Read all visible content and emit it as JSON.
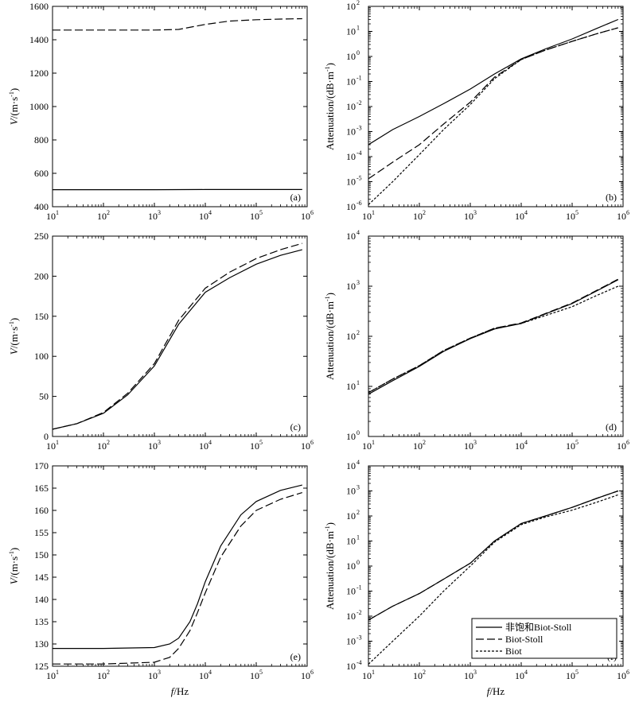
{
  "figure": {
    "legend": {
      "placement": "bottom-right of panel (f)",
      "entries": [
        {
          "label": "非饱和Biot-Stoll",
          "dash": "solid"
        },
        {
          "label": "Biot-Stoll",
          "dash": "dashed"
        },
        {
          "label": "Biot",
          "dash": "dotted"
        }
      ]
    },
    "shared_xlabel": {
      "italic": "f",
      "rest": "/Hz"
    }
  },
  "chart_data": [
    {
      "panel": "(a)",
      "type": "line",
      "xscale": "log",
      "xlim": [
        10,
        1000000
      ],
      "xticks": [
        {
          "b": "10",
          "e": "1"
        },
        {
          "b": "10",
          "e": "2"
        },
        {
          "b": "10",
          "e": "3"
        },
        {
          "b": "10",
          "e": "4"
        },
        {
          "b": "10",
          "e": "5"
        },
        {
          "b": "10",
          "e": "6"
        }
      ],
      "yscale": "linear",
      "ylim": [
        400,
        1600
      ],
      "yticks": [
        {
          "v": 400,
          "t": "400"
        },
        {
          "v": 600,
          "t": "600"
        },
        {
          "v": 800,
          "t": "800"
        },
        {
          "v": 1000,
          "t": "1000"
        },
        {
          "v": 1200,
          "t": "1200"
        },
        {
          "v": 1400,
          "t": "1400"
        },
        {
          "v": 1600,
          "t": "1600"
        }
      ],
      "ylabel": {
        "italic": "V",
        "rest": "/(m·s",
        "sup": "-1",
        "end": ")"
      },
      "series": [
        {
          "dash": "solid",
          "x": [
            10,
            100,
            1000,
            10000,
            100000,
            800000
          ],
          "y": [
            502,
            502,
            502,
            503,
            503,
            503
          ]
        },
        {
          "dash": "dashed",
          "x": [
            10,
            100,
            1000,
            3000,
            10000,
            30000,
            100000,
            300000,
            800000
          ],
          "y": [
            1458,
            1458,
            1458,
            1462,
            1492,
            1512,
            1520,
            1524,
            1526
          ]
        }
      ]
    },
    {
      "panel": "(b)",
      "type": "line",
      "xscale": "log",
      "xlim": [
        10,
        1000000
      ],
      "xticks": [
        {
          "b": "10",
          "e": "1"
        },
        {
          "b": "10",
          "e": "2"
        },
        {
          "b": "10",
          "e": "3"
        },
        {
          "b": "10",
          "e": "4"
        },
        {
          "b": "10",
          "e": "5"
        },
        {
          "b": "10",
          "e": "6"
        }
      ],
      "yscale": "log",
      "ylim": [
        1e-06,
        100
      ],
      "yticks": [
        {
          "v": 1e-06,
          "b": "10",
          "e": "-6"
        },
        {
          "v": 1e-05,
          "b": "10",
          "e": "-5"
        },
        {
          "v": 0.0001,
          "b": "10",
          "e": "-4"
        },
        {
          "v": 0.001,
          "b": "10",
          "e": "-3"
        },
        {
          "v": 0.01,
          "b": "10",
          "e": "-2"
        },
        {
          "v": 0.1,
          "b": "10",
          "e": "-1"
        },
        {
          "v": 1,
          "b": "10",
          "e": "0"
        },
        {
          "v": 10,
          "b": "10",
          "e": "1"
        },
        {
          "v": 100,
          "b": "10",
          "e": "2"
        }
      ],
      "ylabel": {
        "italic": "",
        "rest": "Attenuation/(dB·m",
        "sup": "-1",
        "end": ")"
      },
      "series": [
        {
          "dash": "solid",
          "x": [
            10,
            30,
            100,
            300,
            1000,
            3000,
            10000,
            30000,
            100000,
            300000,
            800000
          ],
          "y": [
            0.0003,
            0.0012,
            0.004,
            0.013,
            0.05,
            0.2,
            0.8,
            2,
            5,
            13,
            30
          ]
        },
        {
          "dash": "dashed",
          "x": [
            10,
            30,
            100,
            300,
            1000,
            3000,
            10000,
            30000,
            100000,
            300000,
            800000
          ],
          "y": [
            1.3e-05,
            6e-05,
            0.0003,
            0.002,
            0.015,
            0.15,
            0.75,
            1.8,
            4,
            8,
            14
          ]
        },
        {
          "dash": "dotted",
          "x": [
            10,
            30,
            100,
            300,
            1000,
            3000,
            10000,
            30000,
            100000,
            300000,
            800000
          ],
          "y": [
            1.2e-06,
            1e-05,
            0.00012,
            0.0012,
            0.012,
            0.13,
            0.75,
            1.8,
            4,
            8,
            14
          ]
        }
      ]
    },
    {
      "panel": "(c)",
      "type": "line",
      "xscale": "log",
      "xlim": [
        10,
        1000000
      ],
      "xticks": [
        {
          "b": "10",
          "e": "1"
        },
        {
          "b": "10",
          "e": "2"
        },
        {
          "b": "10",
          "e": "3"
        },
        {
          "b": "10",
          "e": "4"
        },
        {
          "b": "10",
          "e": "5"
        },
        {
          "b": "10",
          "e": "6"
        }
      ],
      "yscale": "linear",
      "ylim": [
        0,
        250
      ],
      "yticks": [
        {
          "v": 0,
          "t": "0"
        },
        {
          "v": 50,
          "t": "50"
        },
        {
          "v": 100,
          "t": "100"
        },
        {
          "v": 150,
          "t": "150"
        },
        {
          "v": 200,
          "t": "200"
        },
        {
          "v": 250,
          "t": "250"
        }
      ],
      "ylabel": {
        "italic": "V",
        "rest": "/(m·s",
        "sup": "-1",
        "end": ")"
      },
      "series": [
        {
          "dash": "solid",
          "x": [
            10,
            30,
            100,
            300,
            1000,
            3000,
            10000,
            30000,
            100000,
            300000,
            800000
          ],
          "y": [
            9,
            16,
            29,
            52,
            88,
            140,
            180,
            198,
            215,
            226,
            233
          ]
        },
        {
          "dash": "dashed",
          "x": [
            10,
            30,
            100,
            300,
            1000,
            3000,
            10000,
            30000,
            100000,
            300000,
            800000
          ],
          "y": [
            9,
            16,
            30,
            54,
            91,
            145,
            185,
            205,
            222,
            233,
            241
          ]
        }
      ]
    },
    {
      "panel": "(d)",
      "type": "line",
      "xscale": "log",
      "xlim": [
        10,
        1000000
      ],
      "xticks": [
        {
          "b": "10",
          "e": "1"
        },
        {
          "b": "10",
          "e": "2"
        },
        {
          "b": "10",
          "e": "3"
        },
        {
          "b": "10",
          "e": "4"
        },
        {
          "b": "10",
          "e": "5"
        },
        {
          "b": "10",
          "e": "6"
        }
      ],
      "yscale": "log",
      "ylim": [
        1,
        10000
      ],
      "yticks": [
        {
          "v": 1,
          "b": "10",
          "e": "0"
        },
        {
          "v": 10,
          "b": "10",
          "e": "1"
        },
        {
          "v": 100,
          "b": "10",
          "e": "2"
        },
        {
          "v": 1000,
          "b": "10",
          "e": "3"
        },
        {
          "v": 10000,
          "b": "10",
          "e": "4"
        }
      ],
      "ylabel": {
        "italic": "",
        "rest": "Attenuation/(dB·m",
        "sup": "-1",
        "end": ")"
      },
      "series": [
        {
          "dash": "solid",
          "x": [
            10,
            30,
            100,
            300,
            1000,
            3000,
            10000,
            30000,
            100000,
            300000,
            800000
          ],
          "y": [
            7,
            13,
            25,
            50,
            90,
            140,
            180,
            280,
            450,
            800,
            1350
          ]
        },
        {
          "dash": "dashed",
          "x": [
            10,
            30,
            100,
            300,
            1000,
            3000,
            10000,
            30000,
            100000,
            300000,
            800000
          ],
          "y": [
            7.5,
            14,
            26,
            52,
            92,
            145,
            185,
            285,
            460,
            820,
            1380
          ]
        },
        {
          "dash": "dotted",
          "x": [
            10,
            30,
            100,
            300,
            1000,
            3000,
            10000,
            30000,
            100000,
            300000,
            800000
          ],
          "y": [
            7.5,
            14,
            26,
            52,
            92,
            145,
            180,
            260,
            390,
            650,
            1000
          ]
        }
      ]
    },
    {
      "panel": "(e)",
      "type": "line",
      "xscale": "log",
      "xlim": [
        10,
        1000000
      ],
      "xticks": [
        {
          "b": "10",
          "e": "1"
        },
        {
          "b": "10",
          "e": "2"
        },
        {
          "b": "10",
          "e": "3"
        },
        {
          "b": "10",
          "e": "4"
        },
        {
          "b": "10",
          "e": "5"
        },
        {
          "b": "10",
          "e": "6"
        }
      ],
      "yscale": "linear",
      "ylim": [
        125,
        170
      ],
      "yticks": [
        {
          "v": 125,
          "t": "125"
        },
        {
          "v": 130,
          "t": "130"
        },
        {
          "v": 135,
          "t": "135"
        },
        {
          "v": 140,
          "t": "140"
        },
        {
          "v": 145,
          "t": "145"
        },
        {
          "v": 150,
          "t": "150"
        },
        {
          "v": 155,
          "t": "155"
        },
        {
          "v": 160,
          "t": "160"
        },
        {
          "v": 165,
          "t": "165"
        },
        {
          "v": 170,
          "t": "170"
        }
      ],
      "ylabel": {
        "italic": "V",
        "rest": "/(m·s",
        "sup": "-1",
        "end": ")"
      },
      "series": [
        {
          "dash": "solid",
          "x": [
            10,
            100,
            1000,
            2000,
            3000,
            5000,
            7000,
            10000,
            20000,
            50000,
            100000,
            300000,
            800000
          ],
          "y": [
            129,
            129,
            129.2,
            130,
            131.3,
            135,
            139,
            144,
            152,
            159,
            162,
            164.5,
            165.7
          ]
        },
        {
          "dash": "dashed",
          "x": [
            10,
            100,
            1000,
            2000,
            3000,
            5000,
            7000,
            10000,
            20000,
            50000,
            100000,
            300000,
            800000
          ],
          "y": [
            125.5,
            125.5,
            125.9,
            127,
            129,
            133,
            137,
            141.5,
            149.5,
            156.5,
            160,
            162.5,
            164
          ]
        }
      ]
    },
    {
      "panel": "(f)",
      "type": "line",
      "xscale": "log",
      "xlim": [
        10,
        1000000
      ],
      "xticks": [
        {
          "b": "10",
          "e": "1"
        },
        {
          "b": "10",
          "e": "2"
        },
        {
          "b": "10",
          "e": "3"
        },
        {
          "b": "10",
          "e": "4"
        },
        {
          "b": "10",
          "e": "5"
        },
        {
          "b": "10",
          "e": "6"
        }
      ],
      "yscale": "log",
      "ylim": [
        0.0001,
        10000
      ],
      "yticks": [
        {
          "v": 0.0001,
          "b": "10",
          "e": "-4"
        },
        {
          "v": 0.001,
          "b": "10",
          "e": "-3"
        },
        {
          "v": 0.01,
          "b": "10",
          "e": "-2"
        },
        {
          "v": 0.1,
          "b": "10",
          "e": "-1"
        },
        {
          "v": 1,
          "b": "10",
          "e": "0"
        },
        {
          "v": 10,
          "b": "10",
          "e": "1"
        },
        {
          "v": 100,
          "b": "10",
          "e": "2"
        },
        {
          "v": 1000,
          "b": "10",
          "e": "3"
        },
        {
          "v": 10000,
          "b": "10",
          "e": "4"
        }
      ],
      "ylabel": {
        "italic": "",
        "rest": "Attenuation/(dB·m",
        "sup": "-1",
        "end": ")"
      },
      "series": [
        {
          "dash": "solid",
          "x": [
            10,
            30,
            100,
            300,
            1000,
            3000,
            10000,
            30000,
            100000,
            300000,
            800000
          ],
          "y": [
            0.007,
            0.025,
            0.08,
            0.3,
            1.3,
            10,
            50,
            100,
            220,
            500,
            1000
          ]
        },
        {
          "dash": "dashed",
          "x": [
            10,
            30,
            100,
            300,
            1000,
            3000,
            10000,
            30000,
            100000,
            300000,
            800000
          ],
          "y": [
            0.007,
            0.025,
            0.08,
            0.3,
            1.3,
            10,
            50,
            100,
            220,
            500,
            1000
          ]
        },
        {
          "dash": "dotted",
          "x": [
            10,
            30,
            100,
            300,
            1000,
            3000,
            10000,
            30000,
            100000,
            300000,
            800000
          ],
          "y": [
            0.00012,
            0.001,
            0.01,
            0.1,
            1,
            9,
            45,
            90,
            170,
            350,
            700
          ]
        }
      ]
    }
  ]
}
